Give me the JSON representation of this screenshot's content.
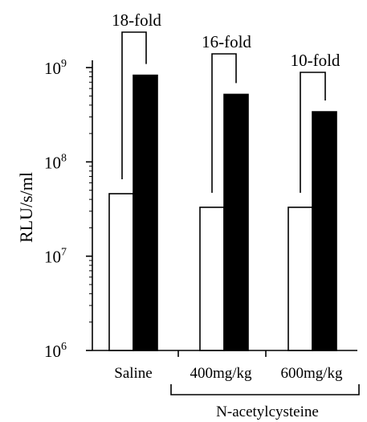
{
  "chart_data": {
    "type": "bar",
    "categories": [
      "Saline",
      "400mg/kg",
      "600mg/kg"
    ],
    "series": [
      {
        "values": [
          46000000,
          33000000,
          33000000
        ],
        "color": "#ffffff"
      },
      {
        "values": [
          830000000,
          520000000,
          340000000
        ],
        "color": "#000000"
      }
    ],
    "ylabel": "RLU/s/ml",
    "yscale": "log",
    "ylim": [
      1000000,
      2500000000
    ],
    "yticks": [
      {
        "base": "10",
        "exp": "6",
        "value": 1000000
      },
      {
        "base": "10",
        "exp": "7",
        "value": 10000000
      },
      {
        "base": "10",
        "exp": "8",
        "value": 100000000
      },
      {
        "base": "10",
        "exp": "9",
        "value": 1000000000
      }
    ],
    "annotations": [
      "18-fold",
      "16-fold",
      "10-fold"
    ],
    "group_label": "N-acetylcysteine",
    "grid": false,
    "legend": "none"
  }
}
